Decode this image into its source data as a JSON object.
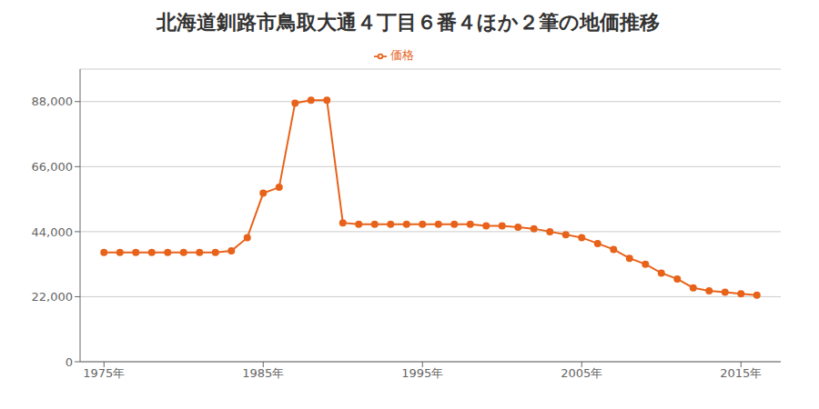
{
  "chart_data": {
    "type": "line",
    "title": "北海道釧路市鳥取大通４丁目６番４ほか２筆の地価推移",
    "x": [
      1975,
      1976,
      1977,
      1978,
      1979,
      1980,
      1981,
      1982,
      1983,
      1984,
      1985,
      1986,
      1987,
      1988,
      1989,
      1990,
      1991,
      1992,
      1993,
      1994,
      1995,
      1996,
      1997,
      1998,
      1999,
      2000,
      2001,
      2002,
      2003,
      2004,
      2005,
      2006,
      2007,
      2008,
      2009,
      2010,
      2011,
      2012,
      2013,
      2014,
      2015,
      2016
    ],
    "series": [
      {
        "name": "価格",
        "color": "#E8621A",
        "marker": "circle",
        "values": [
          37000,
          37000,
          37000,
          37000,
          37000,
          37000,
          37000,
          37000,
          37500,
          42000,
          57000,
          59000,
          87500,
          88500,
          88500,
          47000,
          46500,
          46500,
          46500,
          46500,
          46500,
          46500,
          46500,
          46500,
          46000,
          46000,
          45500,
          45000,
          44000,
          43000,
          42000,
          40000,
          38000,
          35000,
          33000,
          30000,
          28000,
          25000,
          24000,
          23500,
          23000,
          22500
        ]
      }
    ],
    "xlim": [
      1973.5,
      2017.5
    ],
    "xticks": [
      {
        "value": 1975,
        "label": "1975年"
      },
      {
        "value": 1985,
        "label": "1985年"
      },
      {
        "value": 1995,
        "label": "1995年"
      },
      {
        "value": 2005,
        "label": "2005年"
      },
      {
        "value": 2015,
        "label": "2015年"
      }
    ],
    "ylim": [
      0,
      99000
    ],
    "yticks": [
      0,
      {
        "value": 22000,
        "label": "22,000"
      },
      {
        "value": 44000,
        "label": "44,000"
      },
      {
        "value": 66000,
        "label": "66,000"
      },
      {
        "value": 88000,
        "label": "88,000"
      }
    ],
    "grid": true,
    "legend": "top"
  }
}
